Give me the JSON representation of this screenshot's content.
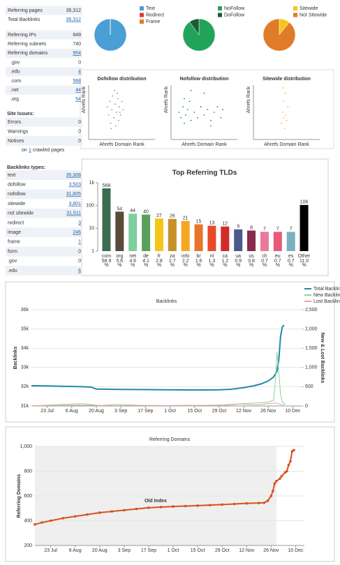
{
  "sidebar": {
    "stats": [
      {
        "label": "Referring pages",
        "value": {
          "value": 35312,
          "label": "35,312"
        }
      },
      {
        "label": "Total Backlinks",
        "value": {
          "value": 35312,
          "label": "35,312"
        },
        "link": true
      },
      {
        "label": "Referring IPs",
        "value": 849
      },
      {
        "label": "Referring subnets",
        "value": 740
      },
      {
        "label": "Referring domains",
        "value": 954,
        "link": true
      },
      {
        "label": ".gov",
        "value": 0
      },
      {
        "label": ".edu",
        "value": 4,
        "link": true
      },
      {
        "label": ".com",
        "value": 568,
        "link": true
      },
      {
        "label": ".net",
        "value": 44,
        "link": true
      },
      {
        "label": ".org",
        "value": 54,
        "link": true
      }
    ],
    "site_issues": {
      "title": "Site Issues:",
      "rows": [
        {
          "label": "Errors",
          "value": 0
        },
        {
          "label": "Warnings",
          "value": 0
        },
        {
          "label": "Notices",
          "value": 0
        }
      ],
      "crawled": {
        "prefix": "on",
        "count": 1,
        "suffix": "crawled pages"
      }
    },
    "backlink_types": {
      "title": "Backlinks types:",
      "rows": [
        {
          "label": "text",
          "value": {
            "value": 35308,
            "label": "35,308"
          },
          "link": true
        },
        {
          "label": "dofollow",
          "value": {
            "value": 3503,
            "label": "3,503"
          },
          "link": true
        },
        {
          "label": "nofollow",
          "value": {
            "value": 31805,
            "label": "31,805"
          },
          "link": true
        },
        {
          "label": "sitewide",
          "value": {
            "value": 3801,
            "label": "3,801"
          },
          "link": true
        },
        {
          "label": "not sitewide",
          "value": {
            "value": 31511,
            "label": "31,511"
          },
          "link": true
        },
        {
          "label": "redirect",
          "value": 3,
          "link": true
        },
        {
          "label": "image",
          "value": 246,
          "link": true
        },
        {
          "label": "frame",
          "value": 1,
          "link": true
        },
        {
          "label": "form",
          "value": 0
        },
        {
          "label": ".gov",
          "value": 0
        },
        {
          "label": ".edu",
          "value": 6,
          "link": true
        }
      ]
    }
  },
  "pies": [
    {
      "type": "pie",
      "slices": [
        {
          "name": "Text",
          "color": "#4a9fd4",
          "value": 35308
        },
        {
          "name": "Redirect",
          "color": "#e03c31",
          "value": 3
        },
        {
          "name": "Frame",
          "color": "#e07b2a",
          "value": 1
        }
      ]
    },
    {
      "type": "pie",
      "slices": [
        {
          "name": "NoFollow",
          "color": "#22a35b",
          "value": 31805
        },
        {
          "name": "DoFollow",
          "color": "#1a5e33",
          "value": 3503
        }
      ]
    },
    {
      "type": "pie",
      "slices": [
        {
          "name": "Sitewide",
          "color": "#f5c518",
          "value": 3801
        },
        {
          "name": "Not Sitewide",
          "color": "#e07b2a",
          "value": 31511
        }
      ]
    }
  ],
  "distributions": [
    {
      "type": "scatter",
      "title": "Dofollow distribution",
      "x_label": "Ahrefs Domain Rank",
      "y_label": "Ahrefs Rank",
      "color": "#7a9ac0",
      "x": [
        28,
        30,
        32,
        33,
        35,
        36,
        38,
        40,
        41,
        42,
        44,
        45,
        46,
        48,
        50,
        52,
        34,
        39,
        43,
        47
      ],
      "values": [
        60,
        45,
        70,
        30,
        55,
        80,
        40,
        65,
        25,
        50,
        75,
        35,
        60,
        45,
        70,
        55,
        20,
        90,
        85,
        50
      ]
    },
    {
      "type": "scatter",
      "title": "Nofollow distribution",
      "x_label": "Ahrefs Domain Rank",
      "y_label": "Ahrefs Rank",
      "color": "#2a8a3a",
      "x": [
        12,
        15,
        18,
        20,
        22,
        25,
        28,
        30,
        35,
        40,
        45,
        50,
        55,
        60,
        65,
        70,
        75,
        78,
        30,
        50,
        60,
        20
      ],
      "values": [
        50,
        40,
        60,
        30,
        45,
        55,
        70,
        35,
        50,
        40,
        60,
        45,
        55,
        35,
        50,
        60,
        40,
        55,
        90,
        85,
        25,
        75
      ]
    },
    {
      "type": "scatter",
      "title": "Sitewide distribution",
      "x_label": "Ahrefs Domain Rank",
      "y_label": "Ahrefs Rank",
      "color": "#f0c020",
      "x": [
        42,
        44,
        45,
        46,
        48,
        50,
        52,
        45,
        47,
        49
      ],
      "values": [
        30,
        50,
        70,
        40,
        85,
        35,
        60,
        95,
        20,
        45
      ]
    }
  ],
  "tld_chart": {
    "type": "bar",
    "title": "Top Referring TLDs",
    "log_scale": true,
    "ylim": [
      1,
      1000
    ],
    "yticks": [
      1,
      10,
      100,
      {
        "value": 1000,
        "label": "1k"
      }
    ],
    "categories": [
      "com",
      "org",
      "net",
      "de",
      "fr",
      "za",
      "info",
      "br",
      "nl",
      "ca",
      "ua",
      "us",
      "ch",
      "eu",
      "es",
      "Other"
    ],
    "values": [
      568,
      54,
      44,
      40,
      27,
      26,
      21,
      15,
      13,
      12,
      9,
      8,
      7,
      7,
      7,
      106
    ],
    "shares": [
      58.9,
      5.6,
      4.6,
      4.1,
      2.8,
      2.7,
      2.2,
      1.6,
      1.3,
      1.2,
      0.9,
      0.8,
      0.7,
      0.7,
      0.7,
      {
        "value": 11,
        "label": "11.0"
      }
    ],
    "share_unit": "%",
    "colors": [
      "#3d6b50",
      "#5a4a3a",
      "#7fcf9f",
      "#5aa05a",
      "#f5c518",
      "#c8902a",
      "#f5a623",
      "#e8762a",
      "#e84a2a",
      "#d42a2a",
      "#4a5a8a",
      "#8a2a4a",
      "#e87a9a",
      "#e85a7a",
      "#7ab0c0",
      "#000000"
    ]
  },
  "backlinks_chart": {
    "type": "line",
    "title": "Backlinks",
    "y_label": "Backlinks",
    "y2_label": "New & Lost Backlinks",
    "legend": "top-right",
    "grid": true,
    "xlim": [
      -9,
      145
    ],
    "xticks": [
      {
        "value": 0,
        "label": "23 Jul"
      },
      {
        "value": 14,
        "label": "6 Aug"
      },
      {
        "value": 28,
        "label": "20 Aug"
      },
      {
        "value": 42,
        "label": "3 Sep"
      },
      {
        "value": 56,
        "label": "17 Sep"
      },
      {
        "value": 70,
        "label": "1 Oct"
      },
      {
        "value": 84,
        "label": "15 Oct"
      },
      {
        "value": 98,
        "label": "29 Oct"
      },
      {
        "value": 112,
        "label": "12 Nov"
      },
      {
        "value": 126,
        "label": "26 Nov"
      },
      {
        "value": 140,
        "label": "10 Dec"
      }
    ],
    "ylim": [
      31000,
      36000
    ],
    "yticks": [
      {
        "value": 31000,
        "label": "31k"
      },
      {
        "value": 32000,
        "label": "32k"
      },
      {
        "value": 33000,
        "label": "33k"
      },
      {
        "value": 34000,
        "label": "34k"
      },
      {
        "value": 35000,
        "label": "35k"
      },
      {
        "value": 36000,
        "label": "36k"
      }
    ],
    "y2lim": [
      0,
      2500
    ],
    "y2ticks": [
      0,
      500,
      {
        "value": 1000,
        "label": "1,000"
      },
      {
        "value": 1500,
        "label": "1,500"
      },
      {
        "value": 2000,
        "label": "2,000"
      },
      {
        "value": 2500,
        "label": "2,500"
      }
    ],
    "series": [
      {
        "name": "Total Backlinks",
        "color": "#1f8aa8",
        "x": [
          -9,
          0,
          10,
          20,
          25,
          28,
          40,
          56,
          70,
          84,
          98,
          105,
          112,
          118,
          122,
          126,
          129,
          131,
          132,
          133,
          134,
          135
        ],
        "values": [
          32050,
          32040,
          32020,
          32000,
          31980,
          31880,
          31860,
          31850,
          31840,
          31830,
          31840,
          31870,
          31950,
          32050,
          32150,
          32300,
          32500,
          32800,
          33400,
          34600,
          35100,
          35200
        ]
      },
      {
        "name": "New Backlinks",
        "color": "#8fd0a0",
        "axis": "y2",
        "x": [
          -9,
          20,
          40,
          60,
          80,
          100,
          112,
          120,
          126,
          129,
          130,
          131,
          132,
          133,
          134,
          136
        ],
        "values": [
          5,
          20,
          10,
          15,
          5,
          30,
          60,
          80,
          100,
          150,
          600,
          1400,
          900,
          300,
          100,
          50
        ]
      },
      {
        "name": "Lost Backlinks",
        "color": "#f0a0a0",
        "axis": "y2",
        "x": [
          -9,
          20,
          30,
          40,
          60,
          80,
          100,
          110,
          120,
          130,
          135
        ],
        "values": [
          5,
          60,
          10,
          40,
          5,
          20,
          10,
          50,
          30,
          80,
          20
        ]
      }
    ]
  },
  "domains_chart": {
    "type": "line",
    "title": "Referring Domains",
    "y_label": "Referring Domains",
    "annotation": "Old Index",
    "old_index_xlim": [
      -9,
      129
    ],
    "grid": true,
    "xlim": [
      -9,
      145
    ],
    "xticks": [
      {
        "value": 0,
        "label": "23 Jul"
      },
      {
        "value": 14,
        "label": "6 Aug"
      },
      {
        "value": 28,
        "label": "20 Aug"
      },
      {
        "value": 42,
        "label": "3 Sep"
      },
      {
        "value": 56,
        "label": "17 Sep"
      },
      {
        "value": 70,
        "label": "1 Oct"
      },
      {
        "value": 84,
        "label": "15 Oct"
      },
      {
        "value": 98,
        "label": "29 Oct"
      },
      {
        "value": 112,
        "label": "12 Nov"
      },
      {
        "value": 126,
        "label": "26 Nov"
      },
      {
        "value": 140,
        "label": "10 Dec"
      }
    ],
    "ylim": [
      200,
      1000
    ],
    "yticks": [
      200,
      400,
      600,
      800,
      {
        "value": 1000,
        "label": "1,000"
      }
    ],
    "series": [
      {
        "color": "#d9501e",
        "x": [
          -9,
          -5,
          0,
          7,
          14,
          21,
          28,
          35,
          42,
          49,
          56,
          63,
          70,
          77,
          84,
          91,
          98,
          105,
          112,
          119,
          122,
          124,
          126,
          127,
          128,
          129,
          131,
          132,
          134,
          135,
          136,
          137,
          138,
          139
        ],
        "values": [
          370,
          385,
          400,
          420,
          435,
          450,
          465,
          475,
          485,
          495,
          505,
          510,
          515,
          518,
          522,
          526,
          530,
          535,
          540,
          543,
          545,
          560,
          600,
          640,
          700,
          720,
          740,
          760,
          790,
          800,
          850,
          880,
          960,
          970
        ]
      }
    ]
  }
}
